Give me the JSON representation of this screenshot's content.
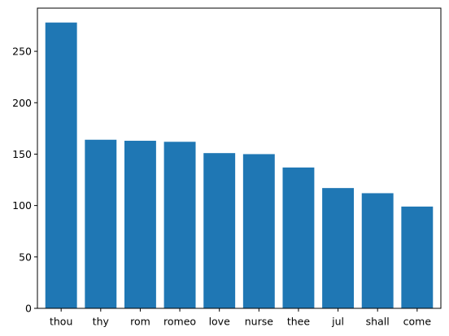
{
  "chart_data": {
    "type": "bar",
    "title": "",
    "xlabel": "",
    "ylabel": "",
    "categories": [
      "thou",
      "thy",
      "rom",
      "romeo",
      "love",
      "nurse",
      "thee",
      "jul",
      "shall",
      "come"
    ],
    "values": [
      278,
      164,
      163,
      162,
      151,
      150,
      137,
      117,
      112,
      99
    ],
    "ylim": [
      0,
      292
    ],
    "yticks": [
      0,
      50,
      100,
      150,
      200,
      250
    ],
    "grid": false,
    "bar_color": "#1f77b4"
  }
}
